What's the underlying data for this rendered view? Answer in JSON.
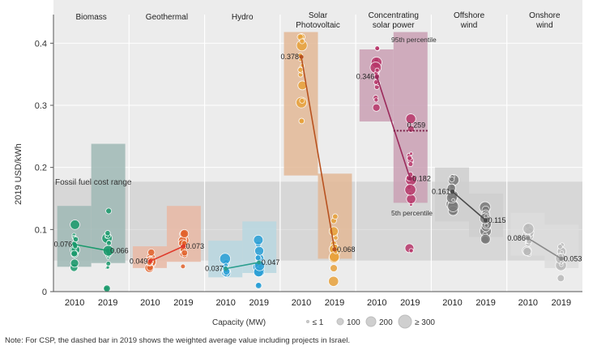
{
  "chart_data": {
    "type": "scatter",
    "ylabel": "2019 USD/kWh",
    "ylim": [
      0,
      0.42
    ],
    "yticks": [
      "0",
      "0.1",
      "0.2",
      "0.3",
      "0.4"
    ],
    "grid": "horizontal",
    "fossil_label": "Fossil fuel cost range",
    "fossil_range": [
      0.05,
      0.177
    ],
    "categories": [
      "Biomass",
      "Geothermal",
      "Hydro",
      "Solar\nPhotovoltaic",
      "Concentrating\nsolar power",
      "Offshore\nwind",
      "Onshore\nwind"
    ],
    "years": [
      "2010",
      "2019"
    ],
    "colors": [
      "#1a9a6c",
      "#e2622b",
      "#2a9fd6",
      "#e8a23b",
      "#b8376a",
      "#7a7a7a",
      "#b9b9b9"
    ],
    "line_colors": [
      "#1a9a6c",
      "#e03a2b",
      "#2a9e8e",
      "#b8521f",
      "#9b2a5b",
      "#4a4a4a",
      "#8a8a8a"
    ],
    "box_colors": [
      "#9fb9b5",
      "#e9b9a5",
      "#b9d7e1",
      "#e3b896",
      "#caa0b4",
      "#cfcfcf",
      "#dddddd"
    ],
    "weighted_average": [
      {
        "y2010": 0.076,
        "y2019": 0.066
      },
      {
        "y2010": 0.049,
        "y2019": 0.073
      },
      {
        "y2010": 0.037,
        "y2019": 0.047
      },
      {
        "y2010": 0.378,
        "y2019": 0.068
      },
      {
        "y2010": 0.346,
        "y2019": 0.182
      },
      {
        "y2010": 0.161,
        "y2019": 0.115
      },
      {
        "y2010": 0.086,
        "y2019": 0.053
      }
    ],
    "percentile_range_2010": [
      [
        0.04,
        0.138
      ],
      [
        0.038,
        0.073
      ],
      [
        0.023,
        0.082
      ],
      [
        0.187,
        0.418
      ],
      [
        0.274,
        0.39
      ],
      [
        0.113,
        0.2
      ],
      [
        0.058,
        0.127
      ]
    ],
    "percentile_range_2019": [
      [
        0.046,
        0.238
      ],
      [
        0.048,
        0.138
      ],
      [
        0.03,
        0.113
      ],
      [
        0.053,
        0.19
      ],
      [
        0.143,
        0.418
      ],
      [
        0.088,
        0.158
      ],
      [
        0.038,
        0.108
      ]
    ],
    "csp_2019_israel_average": 0.259,
    "annotations": {
      "p95": "95th percentile",
      "p5": "5th percentile"
    },
    "legend_title": "Capacity (MW)",
    "legend_items": [
      "≤ 1",
      "100",
      "200",
      "≥ 300"
    ],
    "note": "Note: For CSP, the dashed bar in 2019 shows the weighted average value including projects in Israel."
  }
}
